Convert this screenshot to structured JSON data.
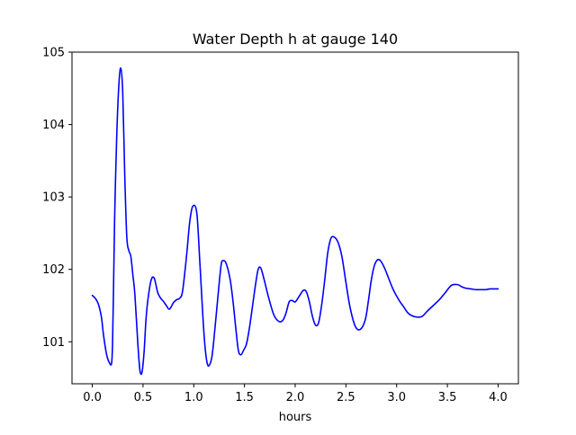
{
  "chart_data": {
    "type": "line",
    "title": "Water Depth h at gauge 140",
    "xlabel": "hours",
    "ylabel": "",
    "xlim": [
      -0.2,
      4.2
    ],
    "ylim": [
      100.42,
      105.0
    ],
    "xticks": [
      0.0,
      0.5,
      1.0,
      1.5,
      2.0,
      2.5,
      3.0,
      3.5,
      4.0
    ],
    "xtick_labels": [
      "0.0",
      "0.5",
      "1.0",
      "1.5",
      "2.0",
      "2.5",
      "3.0",
      "3.5",
      "4.0"
    ],
    "yticks": [
      101,
      102,
      103,
      104,
      105
    ],
    "ytick_labels": [
      "101",
      "102",
      "103",
      "104",
      "105"
    ],
    "grid": false,
    "series": [
      {
        "color": "#0000ff",
        "x": [
          0.0,
          0.03,
          0.06,
          0.09,
          0.11,
          0.14,
          0.165,
          0.19,
          0.2,
          0.21,
          0.22,
          0.24,
          0.26,
          0.28,
          0.3,
          0.32,
          0.34,
          0.36,
          0.38,
          0.4,
          0.42,
          0.45,
          0.47,
          0.49,
          0.51,
          0.53,
          0.55,
          0.58,
          0.61,
          0.645,
          0.675,
          0.7,
          0.73,
          0.76,
          0.8,
          0.83,
          0.86,
          0.89,
          0.93,
          0.96,
          0.99,
          1.03,
          1.06,
          1.09,
          1.11,
          1.13,
          1.15,
          1.18,
          1.21,
          1.24,
          1.27,
          1.29,
          1.32,
          1.36,
          1.39,
          1.415,
          1.44,
          1.465,
          1.49,
          1.52,
          1.55,
          1.58,
          1.61,
          1.635,
          1.66,
          1.69,
          1.74,
          1.79,
          1.84,
          1.88,
          1.91,
          1.94,
          1.97,
          2.0,
          2.04,
          2.08,
          2.11,
          2.14,
          2.17,
          2.2,
          2.23,
          2.26,
          2.29,
          2.32,
          2.35,
          2.38,
          2.42,
          2.46,
          2.5,
          2.54,
          2.59,
          2.64,
          2.69,
          2.72,
          2.75,
          2.78,
          2.81,
          2.84,
          2.88,
          2.92,
          2.96,
          3.0,
          3.03,
          3.07,
          3.11,
          3.15,
          3.2,
          3.25,
          3.3,
          3.36,
          3.42,
          3.48,
          3.54,
          3.6,
          3.64,
          3.68,
          3.73,
          3.78,
          3.83,
          3.88,
          3.92,
          3.96,
          4.0
        ],
        "y": [
          101.64,
          101.6,
          101.52,
          101.34,
          101.1,
          100.83,
          100.72,
          100.7,
          101.0,
          101.8,
          102.7,
          103.8,
          104.5,
          104.78,
          104.45,
          103.3,
          102.45,
          102.26,
          102.18,
          101.92,
          101.65,
          100.95,
          100.6,
          100.58,
          100.85,
          101.32,
          101.6,
          101.85,
          101.88,
          101.68,
          101.6,
          101.56,
          101.5,
          101.45,
          101.54,
          101.58,
          101.6,
          101.7,
          102.2,
          102.65,
          102.87,
          102.78,
          102.1,
          101.35,
          100.95,
          100.72,
          100.67,
          100.8,
          101.2,
          101.65,
          102.06,
          102.12,
          102.08,
          101.85,
          101.52,
          101.18,
          100.88,
          100.82,
          100.88,
          100.97,
          101.2,
          101.5,
          101.8,
          102.0,
          102.02,
          101.88,
          101.6,
          101.37,
          101.28,
          101.3,
          101.4,
          101.55,
          101.57,
          101.55,
          101.63,
          101.71,
          101.69,
          101.55,
          101.35,
          101.23,
          101.26,
          101.5,
          101.84,
          102.22,
          102.42,
          102.45,
          102.38,
          102.18,
          101.82,
          101.48,
          101.22,
          101.17,
          101.3,
          101.55,
          101.85,
          102.05,
          102.13,
          102.12,
          102.02,
          101.88,
          101.74,
          101.63,
          101.56,
          101.48,
          101.4,
          101.36,
          101.34,
          101.35,
          101.42,
          101.5,
          101.58,
          101.68,
          101.78,
          101.79,
          101.76,
          101.74,
          101.73,
          101.72,
          101.72,
          101.72,
          101.73,
          101.73,
          101.73
        ]
      }
    ]
  }
}
